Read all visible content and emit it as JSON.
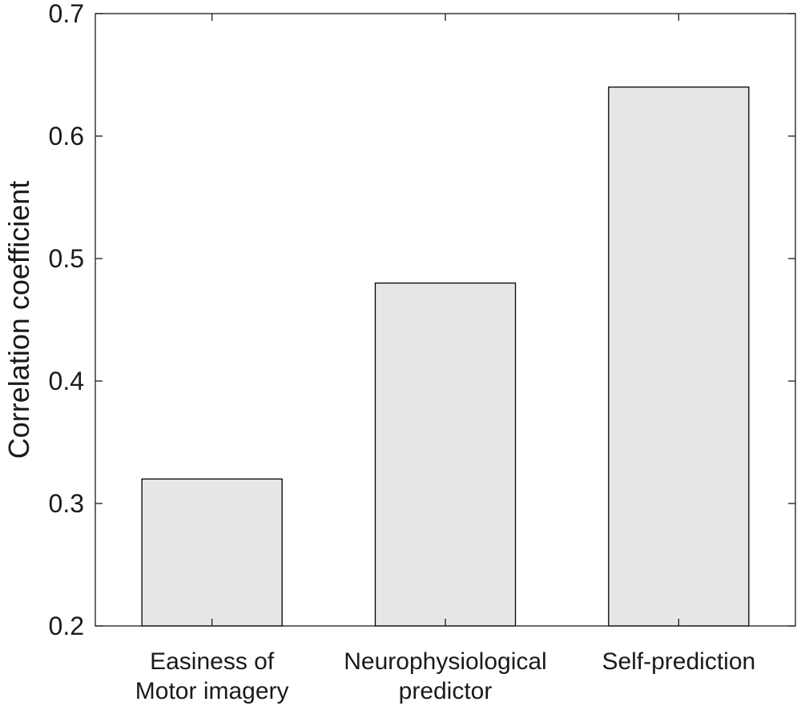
{
  "chart_data": {
    "type": "bar",
    "categories": [
      [
        "Easiness of",
        "Motor imagery"
      ],
      [
        "Neurophysiological",
        "predictor"
      ],
      [
        "Self-prediction"
      ]
    ],
    "values": [
      0.32,
      0.48,
      0.64
    ],
    "title": "",
    "xlabel": "",
    "ylabel": "Correlation coefficient",
    "ylim": [
      0.2,
      0.7
    ],
    "yticks": [
      0.2,
      0.3,
      0.4,
      0.5,
      0.6,
      0.7
    ],
    "ytick_labels": [
      "0.2",
      "0.3",
      "0.4",
      "0.5",
      "0.6",
      "0.7"
    ],
    "grid": false,
    "legend": "none",
    "colors": {
      "bar_fill": "#e6e6e6",
      "bar_stroke": "#000000",
      "axis": "#1a1a1a"
    }
  }
}
